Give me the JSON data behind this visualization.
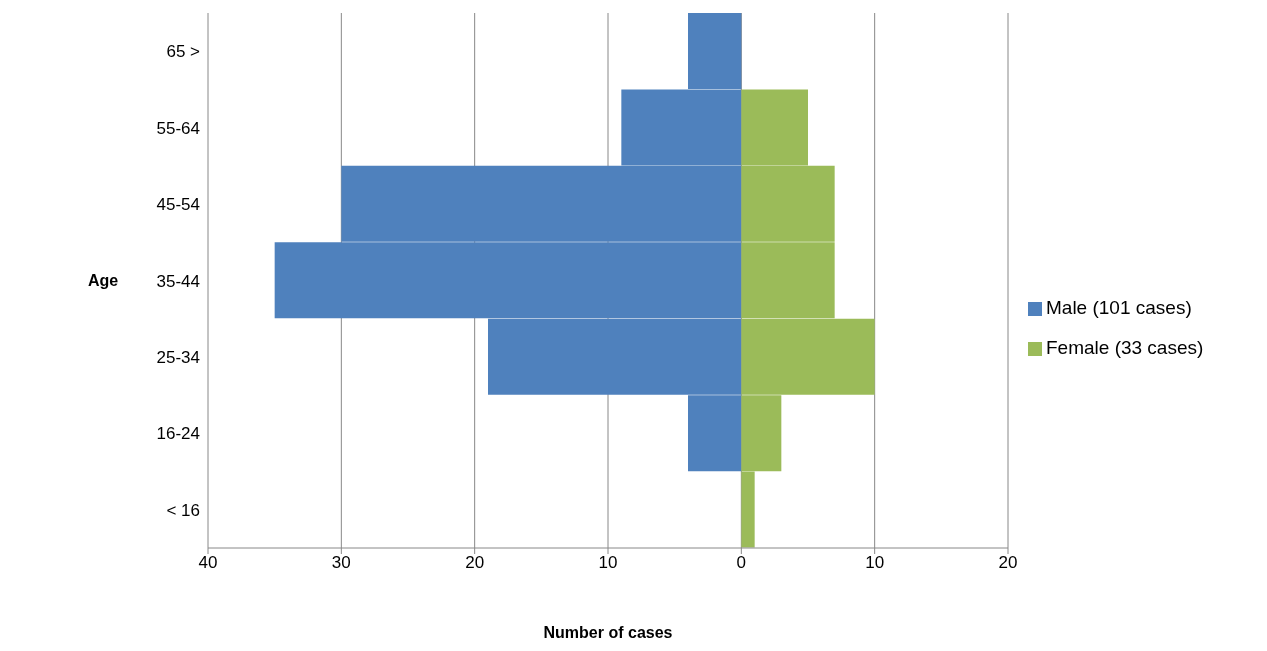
{
  "chart_data": {
    "type": "bar",
    "orientation": "horizontal",
    "stacked": true,
    "categories": [
      "65 >",
      "55-64",
      "45-54",
      "35-44",
      "25-34",
      "16-24",
      "< 16"
    ],
    "series": [
      {
        "name": "Male (101 cases)",
        "color": "#4f81bd",
        "values": [
          -4,
          -9,
          -30,
          -35,
          -19,
          -4,
          0
        ]
      },
      {
        "name": "Female (33 cases)",
        "color": "#9bbb59",
        "values": [
          0,
          5,
          7,
          7,
          10,
          3,
          1
        ]
      }
    ],
    "xlim": [
      -40,
      20
    ],
    "xticks": [
      {
        "value": -40,
        "label": "40"
      },
      {
        "value": -30,
        "label": "30"
      },
      {
        "value": -20,
        "label": "20"
      },
      {
        "value": -10,
        "label": "10"
      },
      0,
      10,
      20
    ],
    "xlabel": "Number of cases",
    "ylabel": "Age",
    "grid": "x",
    "legend": "right"
  }
}
